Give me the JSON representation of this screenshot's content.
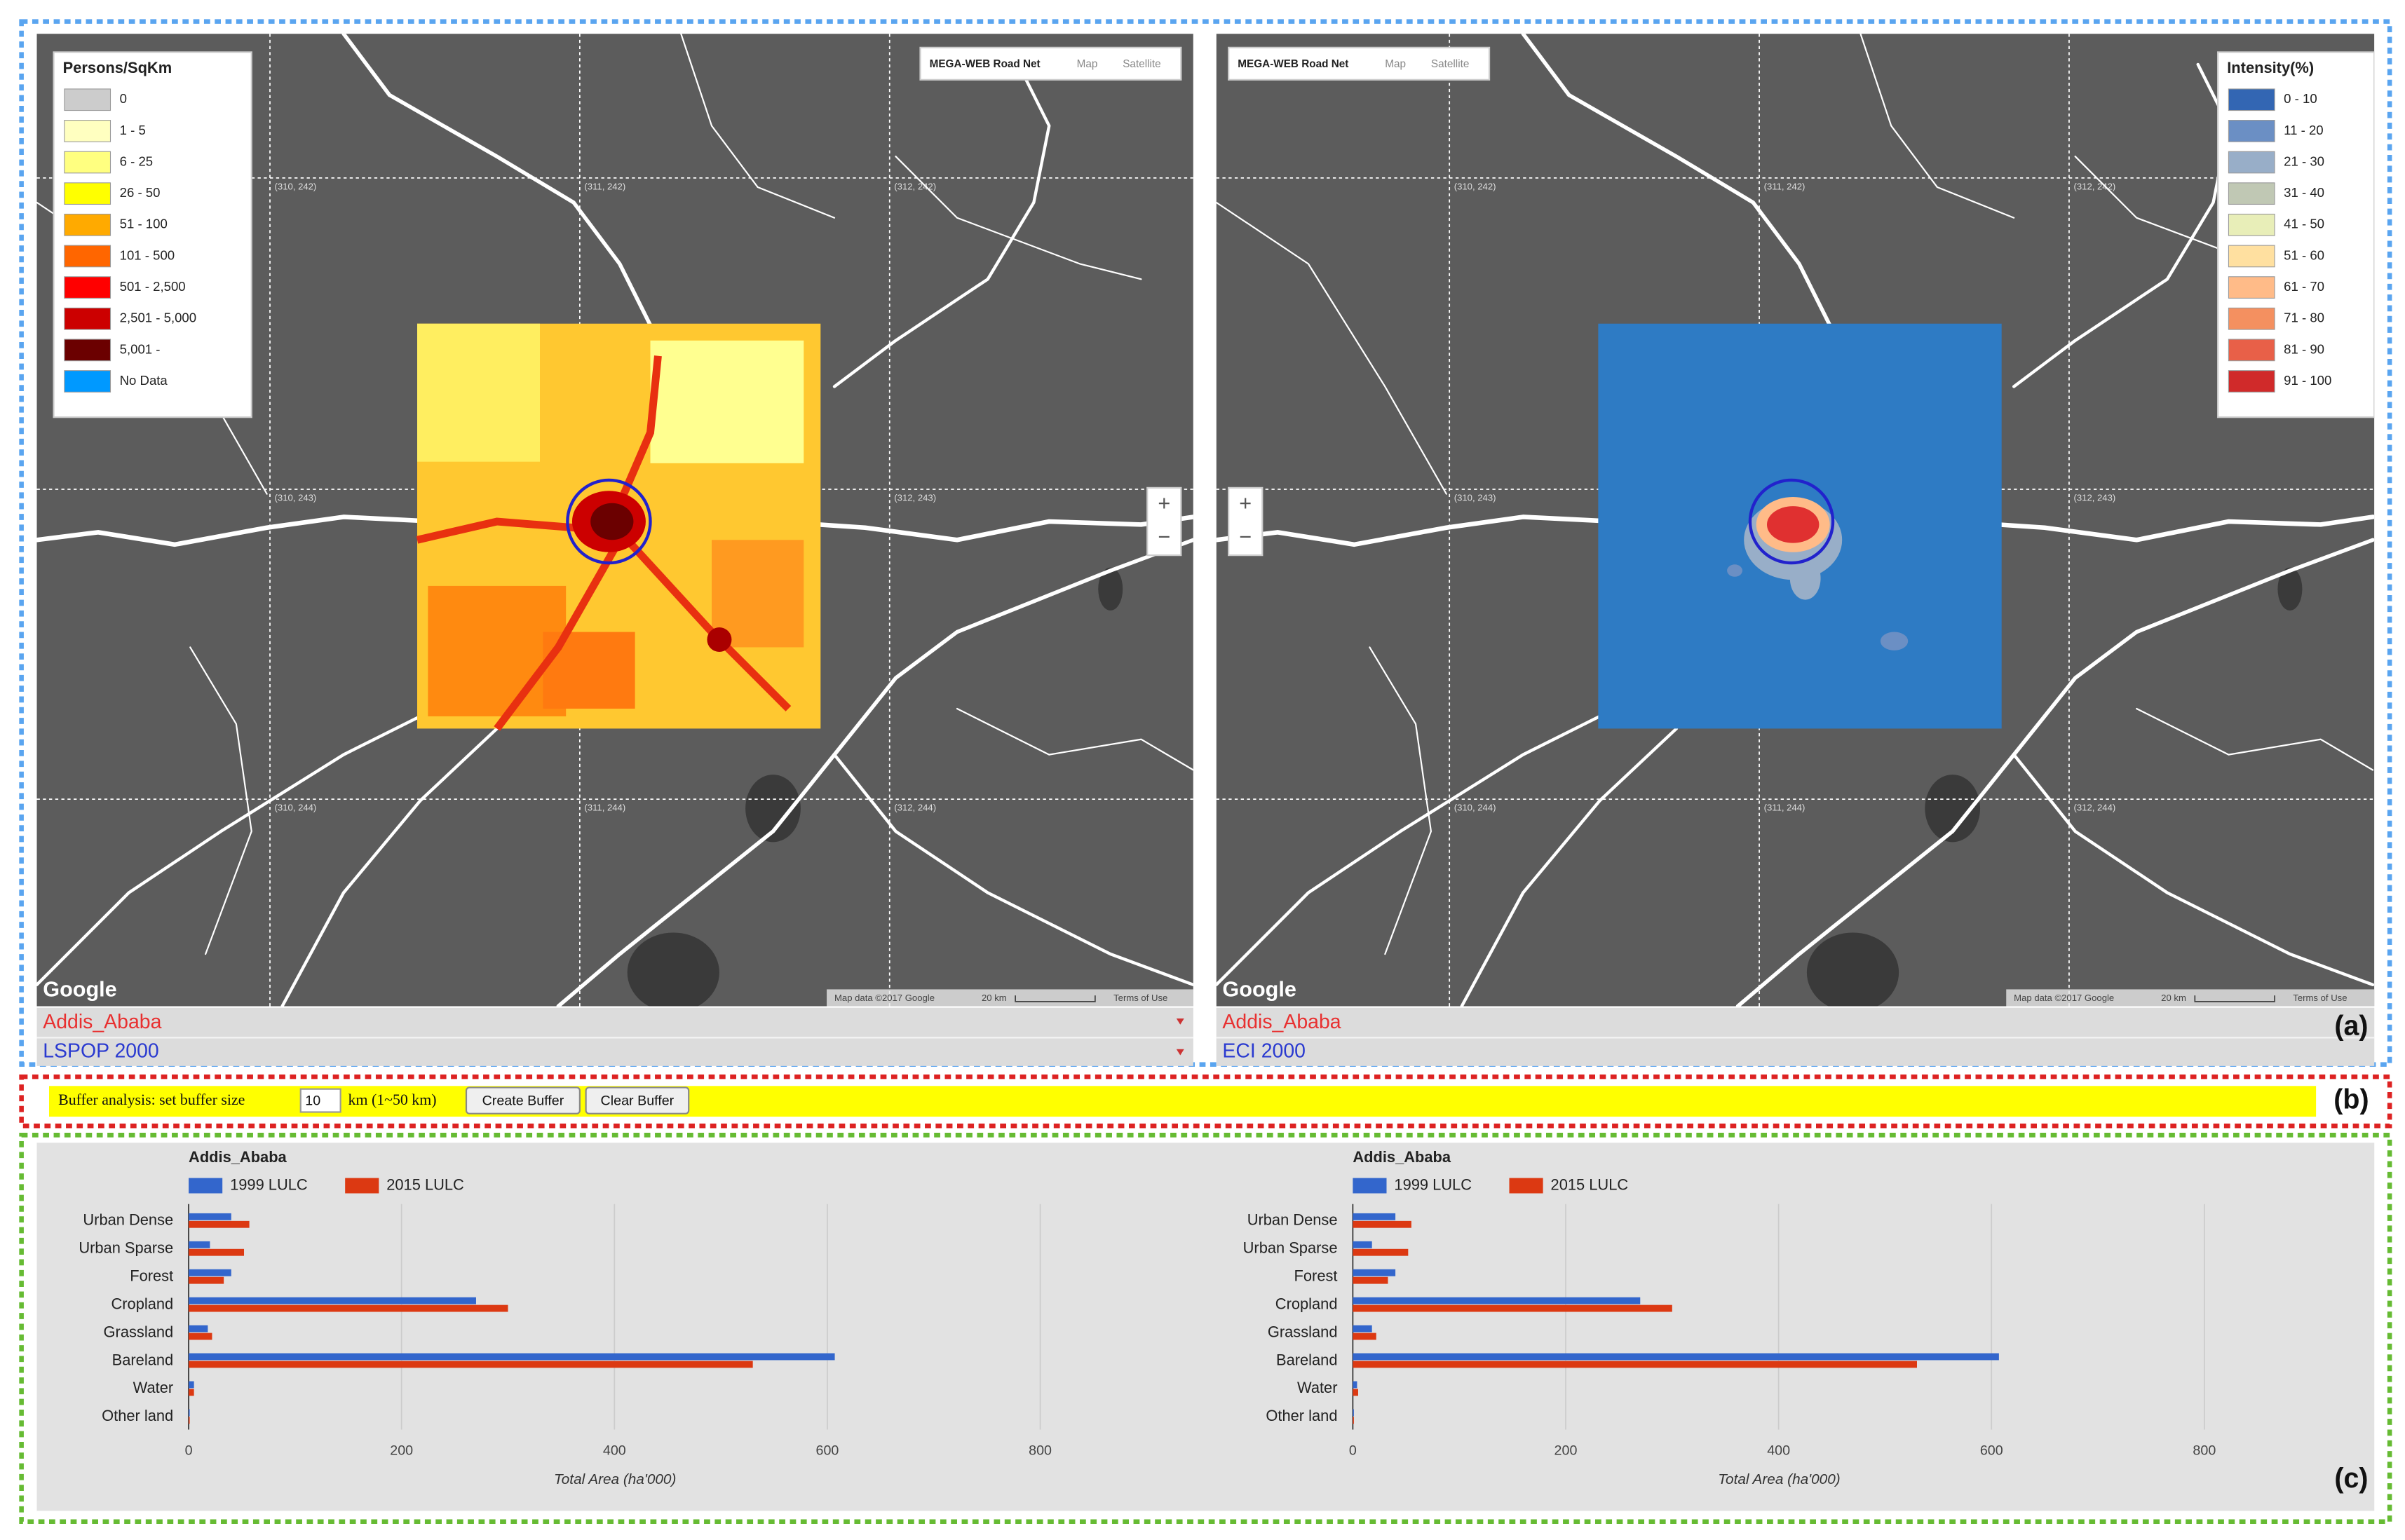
{
  "labels": {
    "a": "(a)",
    "b": "(b)",
    "c": "(c)"
  },
  "maps": [
    {
      "legend": {
        "title": "Persons/SqKm",
        "items": [
          {
            "label": "0",
            "color": "#cccccc"
          },
          {
            "label": "1 - 5",
            "color": "#ffffc0"
          },
          {
            "label": "6 - 25",
            "color": "#ffff80"
          },
          {
            "label": "26 - 50",
            "color": "#ffff00"
          },
          {
            "label": "51 - 100",
            "color": "#ffaa00"
          },
          {
            "label": "101 - 500",
            "color": "#ff6600"
          },
          {
            "label": "501 - 2,500",
            "color": "#ff0000"
          },
          {
            "label": "2,501 - 5,000",
            "color": "#cc0000"
          },
          {
            "label": "5,001 -",
            "color": "#6b0000"
          },
          {
            "label": "No Data",
            "color": "#0099ff"
          }
        ]
      },
      "map_types": [
        "MEGA-WEB Road Net",
        "Map",
        "Satellite"
      ],
      "grid_labels": [
        "(310, 242)",
        "(311, 242)",
        "(312, 242)",
        "(310, 243)",
        "(312, 243)",
        "(310, 244)",
        "(311, 244)",
        "(312, 244)"
      ],
      "zoom": [
        "+",
        "−"
      ],
      "logo": "Google",
      "footer": [
        "Map data ©2017 Google",
        "20 km",
        "Terms of Use"
      ],
      "region": "Addis_Ababa",
      "layer": "LSPOP 2000"
    },
    {
      "legend": {
        "title": "Intensity(%)",
        "items": [
          {
            "label": "0 - 10",
            "color": "#3366b3"
          },
          {
            "label": "11 - 20",
            "color": "#6b8fc4"
          },
          {
            "label": "21 - 30",
            "color": "#98aec8"
          },
          {
            "label": "31 - 40",
            "color": "#c0c8b4"
          },
          {
            "label": "41 - 50",
            "color": "#e8eeb8"
          },
          {
            "label": "51 - 60",
            "color": "#ffe0a0"
          },
          {
            "label": "61 - 70",
            "color": "#ffbb88"
          },
          {
            "label": "71 - 80",
            "color": "#f49060"
          },
          {
            "label": "81 - 90",
            "color": "#e86048"
          },
          {
            "label": "91 - 100",
            "color": "#d02a2a"
          }
        ]
      },
      "map_types": [
        "MEGA-WEB Road Net",
        "Map",
        "Satellite"
      ],
      "grid_labels": [
        "(310, 242)",
        "(311, 242)",
        "(312, 242)",
        "(310, 243)",
        "(312, 243)",
        "(310, 244)",
        "(311, 244)",
        "(312, 244)"
      ],
      "zoom": [
        "+",
        "−"
      ],
      "logo": "Google",
      "footer": [
        "Map data ©2017 Google",
        "20 km",
        "Terms of Use"
      ],
      "region": "Addis_Ababa",
      "layer": "ECI 2000"
    }
  ],
  "buffer": {
    "label": "Buffer analysis: set buffer size",
    "size": 10,
    "unit": "km (1~50 km)",
    "buttons": [
      "Create Buffer",
      "Clear Buffer"
    ]
  },
  "chart_data": [
    {
      "type": "bar",
      "orientation": "horizontal",
      "title": "Addis_Ababa",
      "categories": [
        "Urban Dense",
        "Urban Sparse",
        "Forest",
        "Cropland",
        "Grassland",
        "Bareland",
        "Water",
        "Other land"
      ],
      "series": [
        {
          "name": "1999 LULC",
          "color": "#3366cc",
          "values": [
            40,
            20,
            40,
            270,
            18,
            607,
            5,
            1
          ]
        },
        {
          "name": "2015 LULC",
          "color": "#dc3912",
          "values": [
            57,
            52,
            33,
            300,
            22,
            530,
            5,
            1
          ]
        }
      ],
      "xlabel": "Total Area (ha'000)",
      "xlim": [
        0,
        900
      ],
      "xticks": [
        0,
        200,
        400,
        600,
        800
      ],
      "grid": true
    },
    {
      "type": "bar",
      "orientation": "horizontal",
      "title": "Addis_Ababa",
      "categories": [
        "Urban Dense",
        "Urban Sparse",
        "Forest",
        "Cropland",
        "Grassland",
        "Bareland",
        "Water",
        "Other land"
      ],
      "series": [
        {
          "name": "1999 LULC",
          "color": "#3366cc",
          "values": [
            40,
            18,
            40,
            270,
            18,
            607,
            4,
            1
          ]
        },
        {
          "name": "2015 LULC",
          "color": "#dc3912",
          "values": [
            55,
            52,
            33,
            300,
            22,
            530,
            5,
            1
          ]
        }
      ],
      "xlabel": "Total Area (ha'000)",
      "xlim": [
        0,
        900
      ],
      "xticks": [
        0,
        200,
        400,
        600,
        800
      ],
      "grid": true
    }
  ]
}
